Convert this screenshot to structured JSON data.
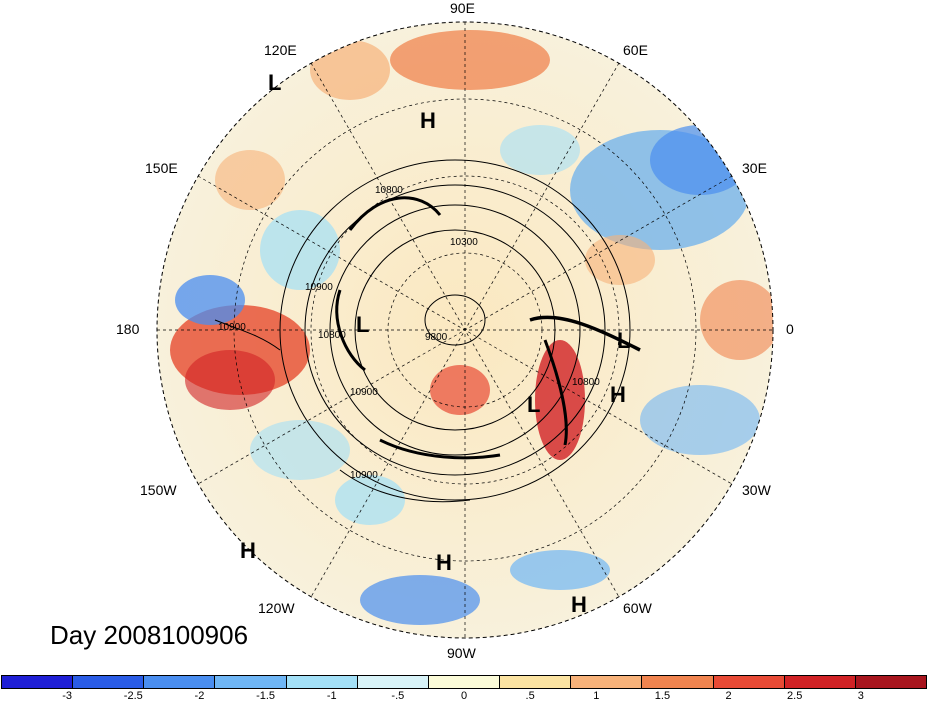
{
  "lon_labels": {
    "n90e": "90E",
    "n120e": "120E",
    "n60e": "60E",
    "n150e": "150E",
    "n30e": "30E",
    "n180": "180",
    "n0": "0",
    "n150w": "150W",
    "n30w": "30W",
    "n120w": "120W",
    "n60w": "60W",
    "n90w": "90W"
  },
  "title": "Day 2008100906",
  "pressure_centers": {
    "low": "L",
    "high": "H"
  },
  "contour_labels": [
    "10800",
    "10300",
    "10900",
    "10900",
    "10900",
    "10800",
    "9800",
    "10800",
    "10900"
  ],
  "colorbar": {
    "colors": [
      "#1f1fd6",
      "#2a5ce6",
      "#4a8ef0",
      "#6fb6f5",
      "#a3e0f7",
      "#d8f3f8",
      "#fbfbd8",
      "#fbe3a2",
      "#f7b27a",
      "#f0844f",
      "#e84a35",
      "#d12225",
      "#a8151e"
    ],
    "labels": [
      "-3",
      "-2.5",
      "-2",
      "-1.5",
      "-1",
      "-.5",
      "0",
      ".5",
      "1",
      "1.5",
      "2",
      "2.5",
      "3"
    ]
  }
}
